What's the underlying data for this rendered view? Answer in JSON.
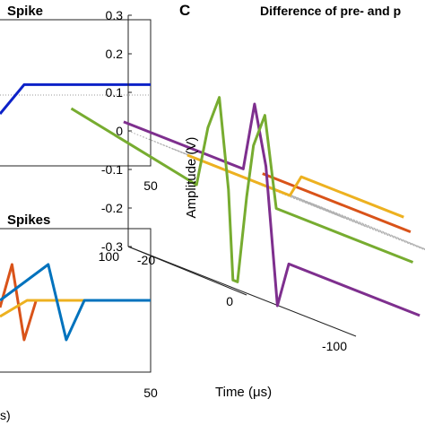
{
  "panels": {
    "top_left": {
      "title": "Spike",
      "tick_x_right": "50"
    },
    "bottom_left": {
      "title": "Spikes",
      "tick_x_right": "50",
      "xlabel_fragment": "s)"
    },
    "right": {
      "panel_letter": "C",
      "title": "Difference of pre- and p",
      "zlabel": "Amplitude (V)",
      "ylabel": "Time (μs)",
      "z_ticks": [
        "0.3",
        "0.2",
        "0.1",
        "0",
        "-0.1",
        "-0.2",
        "-0.3"
      ],
      "y_ticks": [
        "100",
        "0",
        "-100"
      ],
      "x_ticks": [
        "-20"
      ]
    }
  },
  "colors": {
    "blue": "#0d22c8",
    "mat_blue": "#0072bd",
    "mat_orange": "#d95319",
    "mat_yellow": "#edb120",
    "mat_purple": "#7e2f8e",
    "mat_green": "#77ac30",
    "axis": "#222222",
    "grid": "#b0b0b0"
  },
  "chart_data": [
    {
      "type": "line",
      "title": "Spike",
      "xlim": [
        0,
        50
      ],
      "series": [
        {
          "color": "#0d22c8",
          "x": [
            0,
            8,
            50
          ],
          "y": [
            -0.09,
            0.0,
            0.0
          ]
        }
      ]
    },
    {
      "type": "line",
      "title": "Spikes",
      "xlim": [
        0,
        50
      ],
      "series": [
        {
          "color": "#d95319",
          "x": [
            0,
            4,
            8,
            12,
            50
          ],
          "y": [
            -0.2,
            1.0,
            -1.1,
            0.0,
            0.0
          ]
        },
        {
          "color": "#edb120",
          "x": [
            0,
            9,
            50
          ],
          "y": [
            -0.45,
            0.0,
            0.0
          ]
        },
        {
          "color": "#0072bd",
          "x": [
            0,
            16,
            22,
            28,
            50
          ],
          "y": [
            0.0,
            1.0,
            -1.1,
            0.0,
            0.0
          ]
        }
      ]
    },
    {
      "type": "line",
      "title": "Difference of pre- and p",
      "zlabel": "Amplitude (V)",
      "ylabel": "Time (μs)",
      "zlim": [
        -0.3,
        0.3
      ],
      "series": [
        {
          "color": "#77ac30",
          "x": -20,
          "t": [
            -150,
            -40,
            -30,
            -20,
            -12,
            -8,
            -4,
            4,
            10,
            20,
            30,
            150
          ],
          "z": [
            0,
            -0.07,
            0.09,
            0.18,
            -0.05,
            -0.28,
            -0.28,
            -0.05,
            0.09,
            0.18,
            -0.05,
            -0.05
          ]
        },
        {
          "color": "#7e2f8e",
          "x": -10,
          "t": [
            -130,
            -40,
            -25,
            -15,
            -5,
            5,
            15,
            130
          ],
          "z": [
            0.02,
            0.02,
            0.02,
            0.2,
            0.05,
            -0.3,
            -0.18,
            -0.18
          ]
        },
        {
          "color": "#edb120",
          "x": 0,
          "t": [
            -100,
            -10,
            0,
            90
          ],
          "z": [
            0.0,
            0.0,
            0.06,
            0.06
          ]
        },
        {
          "color": "#d95319",
          "x": 10,
          "t": [
            -60,
            0,
            70
          ],
          "z": [
            0.03,
            0.03,
            0.03
          ]
        }
      ]
    }
  ]
}
